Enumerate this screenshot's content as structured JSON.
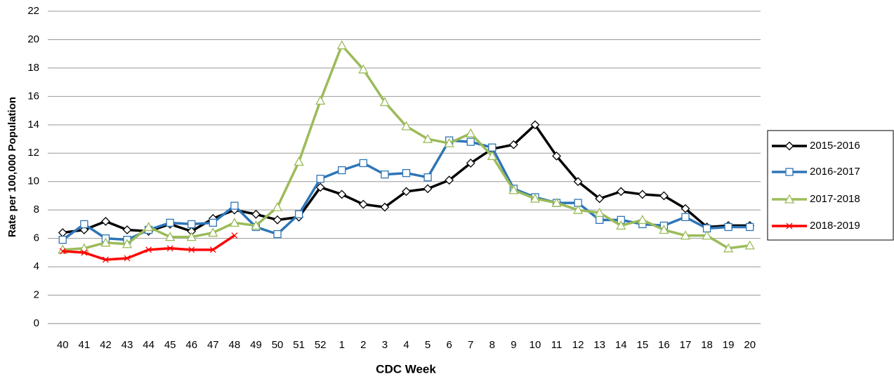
{
  "chart_data": {
    "type": "line",
    "y_label": "Rate per 100,000 Population",
    "x_label": "CDC Week",
    "categories": [
      "40",
      "41",
      "42",
      "43",
      "44",
      "45",
      "46",
      "47",
      "48",
      "49",
      "50",
      "51",
      "52",
      "1",
      "2",
      "3",
      "4",
      "5",
      "6",
      "7",
      "8",
      "9",
      "10",
      "11",
      "12",
      "13",
      "14",
      "15",
      "16",
      "17",
      "18",
      "19",
      "20"
    ],
    "series": [
      {
        "name": "2015-2016",
        "color": "#000000",
        "marker": "diamond",
        "values": [
          6.4,
          6.6,
          7.2,
          6.6,
          6.5,
          7.0,
          6.5,
          7.4,
          8.0,
          7.7,
          7.3,
          7.5,
          9.6,
          9.1,
          8.4,
          8.2,
          9.3,
          9.5,
          10.1,
          11.3,
          12.3,
          12.6,
          14.0,
          11.8,
          10.0,
          8.8,
          9.3,
          9.1,
          9.0,
          8.1,
          6.8,
          6.9,
          6.9
        ]
      },
      {
        "name": "2016-2017",
        "color": "#2e75b6",
        "marker": "square",
        "values": [
          5.9,
          7.0,
          6.0,
          5.9,
          6.6,
          7.1,
          7.0,
          7.1,
          8.3,
          6.8,
          6.3,
          7.7,
          10.2,
          10.8,
          11.3,
          10.5,
          10.6,
          10.3,
          12.9,
          12.8,
          12.4,
          9.5,
          8.9,
          8.5,
          8.5,
          7.3,
          7.3,
          7.0,
          6.9,
          7.5,
          6.7,
          6.8,
          6.8
        ]
      },
      {
        "name": "2017-2018",
        "color": "#9bbb59",
        "marker": "triangle",
        "values": [
          5.2,
          5.3,
          5.7,
          5.6,
          6.8,
          6.1,
          6.1,
          6.4,
          7.1,
          6.9,
          8.2,
          11.4,
          15.7,
          19.6,
          17.9,
          15.6,
          13.9,
          13.0,
          12.7,
          13.4,
          11.8,
          9.4,
          8.8,
          8.5,
          8.0,
          7.8,
          6.9,
          7.3,
          6.6,
          6.2,
          6.2,
          5.3,
          5.5
        ]
      },
      {
        "name": "2018-2019",
        "color": "#ff0000",
        "marker": "x",
        "values": [
          5.1,
          5.0,
          4.5,
          4.6,
          5.2,
          5.3,
          5.2,
          5.2,
          6.2,
          null,
          null,
          null,
          null,
          null,
          null,
          null,
          null,
          null,
          null,
          null,
          null,
          null,
          null,
          null,
          null,
          null,
          null,
          null,
          null,
          null,
          null,
          null,
          null
        ]
      }
    ],
    "ylim": [
      0,
      22
    ],
    "yticks": [
      0,
      2,
      4,
      6,
      8,
      10,
      12,
      14,
      16,
      18,
      20,
      22
    ],
    "grid": true,
    "legend": "right"
  }
}
